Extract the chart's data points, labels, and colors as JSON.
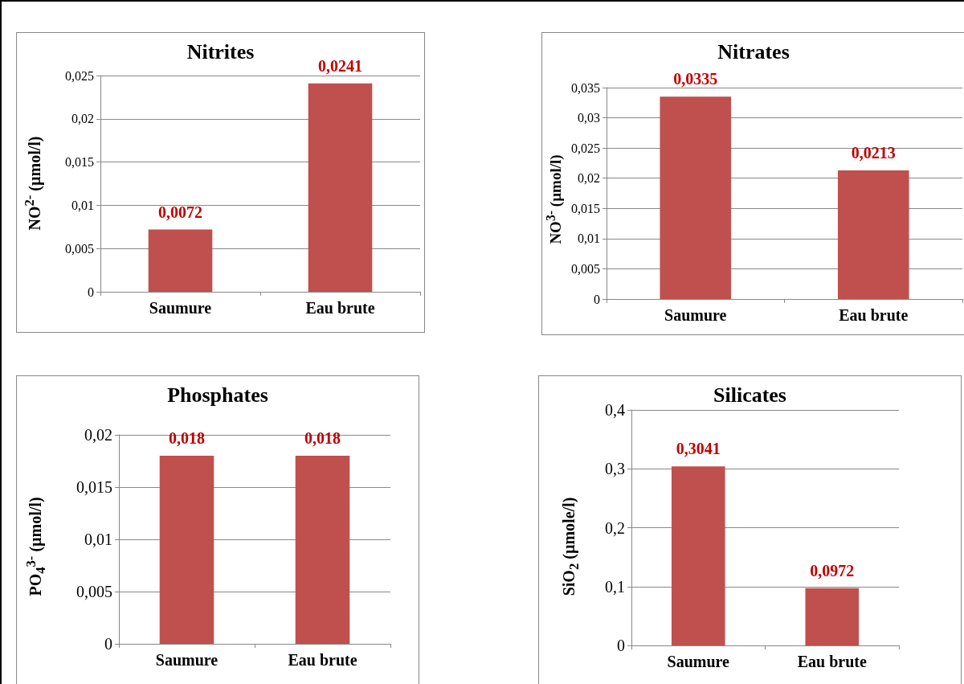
{
  "chart_data": [
    {
      "type": "bar",
      "title": "Nitrites",
      "ylabel": "NO$^{2-}$ (µmol/l)",
      "categories": [
        "Saumure",
        "Eau brute"
      ],
      "values": [
        0.0072,
        0.0241
      ],
      "value_labels": [
        "0,0072",
        "0,0241"
      ],
      "color": "#c0504d",
      "ylim": [
        0,
        0.025
      ],
      "yticks": [
        {
          "value": 0,
          "label": "0"
        },
        {
          "value": 0.005,
          "label": "0,005"
        },
        {
          "value": 0.01,
          "label": "0,01"
        },
        {
          "value": 0.015,
          "label": "0,015"
        },
        {
          "value": 0.02,
          "label": "0,02"
        },
        {
          "value": 0.025,
          "label": "0,025"
        }
      ],
      "grid": "y"
    },
    {
      "type": "bar",
      "title": "Nitrates",
      "ylabel": "NO$^{3-}$ (µmol/l)",
      "categories": [
        "Saumure",
        "Eau brute"
      ],
      "values": [
        0.0335,
        0.0213
      ],
      "value_labels": [
        "0,0335",
        "0,0213"
      ],
      "color": "#c0504d",
      "ylim": [
        0,
        0.035
      ],
      "yticks": [
        {
          "value": 0,
          "label": "0"
        },
        {
          "value": 0.005,
          "label": "0,005"
        },
        {
          "value": 0.01,
          "label": "0,01"
        },
        {
          "value": 0.015,
          "label": "0,015"
        },
        {
          "value": 0.02,
          "label": "0,02"
        },
        {
          "value": 0.025,
          "label": "0,025"
        },
        {
          "value": 0.03,
          "label": "0,03"
        },
        {
          "value": 0.035,
          "label": "0,035"
        }
      ],
      "grid": "y"
    },
    {
      "type": "bar",
      "title": "Phosphates",
      "ylabel": "PO$_{4}$$^{3-}$ (µmol/l)",
      "categories": [
        "Saumure",
        "Eau brute"
      ],
      "values": [
        0.018,
        0.018
      ],
      "value_labels": [
        "0,018",
        "0,018"
      ],
      "color": "#c0504d",
      "ylim": [
        0,
        0.02
      ],
      "yticks": [
        {
          "value": 0,
          "label": "0"
        },
        {
          "value": 0.005,
          "label": "0,005"
        },
        {
          "value": 0.01,
          "label": "0,01"
        },
        {
          "value": 0.015,
          "label": "0,015"
        },
        {
          "value": 0.02,
          "label": "0,02"
        }
      ],
      "grid": "y"
    },
    {
      "type": "bar",
      "title": "Silicates",
      "ylabel": "SiO$_{2}$ (µmole/l)",
      "categories": [
        "Saumure",
        "Eau brute"
      ],
      "values": [
        0.3041,
        0.0972
      ],
      "value_labels": [
        "0,3041",
        "0,0972"
      ],
      "color": "#c0504d",
      "ylim": [
        0,
        0.4
      ],
      "yticks": [
        {
          "value": 0,
          "label": "0"
        },
        {
          "value": 0.1,
          "label": "0,1"
        },
        {
          "value": 0.2,
          "label": "0,2"
        },
        {
          "value": 0.3,
          "label": "0,3"
        },
        {
          "value": 0.4,
          "label": "0,4"
        }
      ],
      "grid": "y"
    }
  ]
}
